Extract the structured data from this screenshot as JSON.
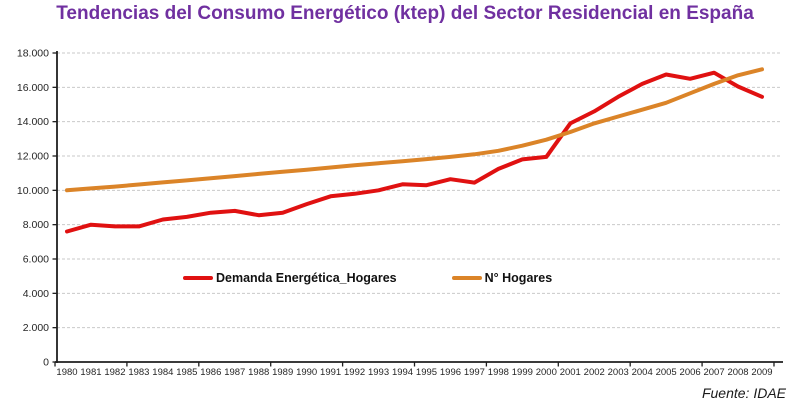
{
  "page": {
    "title": "Tendencias del Consumo Energético (ktep) del Sector Residencial en España",
    "source": "Fuente: IDAE"
  },
  "colors": {
    "title": "#7030A0",
    "demanda": "#E01111",
    "hogares": "#DB8428",
    "grid": "#C9C9C9",
    "axis": "#1F1F1F",
    "tick_text": "#262626"
  },
  "legend": {
    "items": [
      {
        "label": "Demanda Energética_Hogares"
      },
      {
        "label": "N° Hogares"
      }
    ]
  },
  "chart_data": {
    "type": "line",
    "title": "Tendencias del Consumo Energético (ktep) del Sector Residencial en España",
    "x": [
      1980,
      1981,
      1982,
      1983,
      1984,
      1985,
      1986,
      1987,
      1988,
      1989,
      1990,
      1991,
      1992,
      1993,
      1994,
      1995,
      1996,
      1997,
      1998,
      1999,
      2000,
      2001,
      2002,
      2003,
      2004,
      2005,
      2006,
      2007,
      2008,
      2009
    ],
    "series": [
      {
        "name": "Demanda Energética_Hogares",
        "color": "#E01111",
        "values": [
          7600,
          8000,
          7900,
          7900,
          8300,
          8450,
          8700,
          8800,
          8550,
          8700,
          9200,
          9650,
          9800,
          10000,
          10350,
          10300,
          10650,
          10450,
          11250,
          11800,
          11950,
          13900,
          14600,
          15450,
          16200,
          16750,
          16500,
          16850,
          16050,
          15450
        ]
      },
      {
        "name": "N° Hogares",
        "color": "#DB8428",
        "values": [
          10000,
          10110,
          10220,
          10340,
          10460,
          10580,
          10700,
          10830,
          10960,
          11080,
          11200,
          11330,
          11460,
          11580,
          11700,
          11820,
          11950,
          12100,
          12300,
          12600,
          12950,
          13400,
          13900,
          14300,
          14700,
          15100,
          15650,
          16200,
          16700,
          17050
        ]
      }
    ],
    "ylim": [
      0,
      18000
    ],
    "ytick_step": 2000,
    "ytick_labels": [
      "0",
      "2.000",
      "4.000",
      "6.000",
      "8.000",
      "10.000",
      "12.000",
      "14.000",
      "16.000",
      "18.000"
    ],
    "grid": "horizontal-dashed",
    "legend_position": "inside-bottom-center",
    "source": "Fuente: IDAE"
  }
}
